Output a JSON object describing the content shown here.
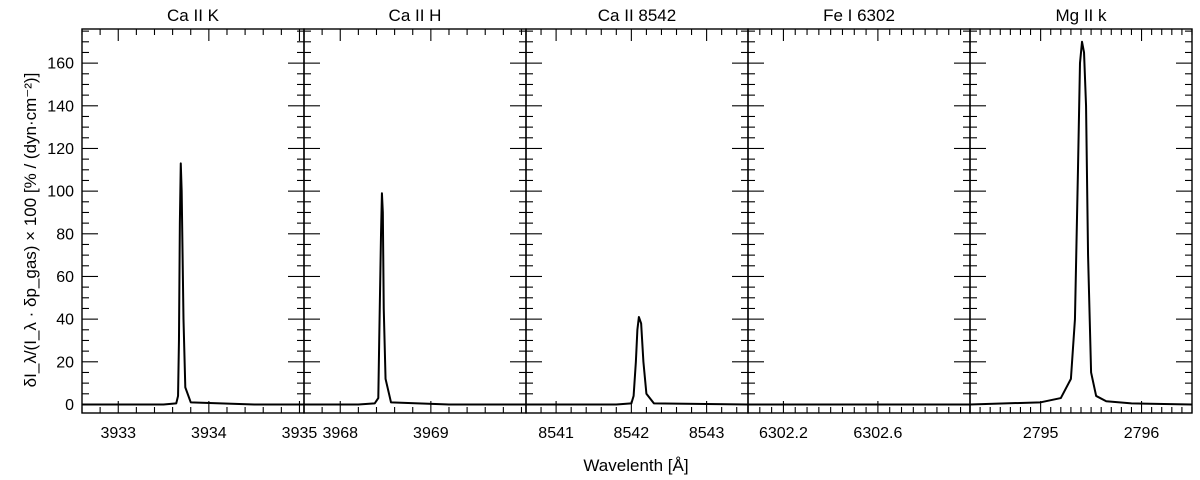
{
  "chart_data": {
    "type": "line",
    "ylabel": "δI_λ/(I_λ · δp_gas) × 100 [% / (dyn·cm⁻²)]",
    "xlabel": "Wavelenth [Å]",
    "ylim": [
      -4,
      176
    ],
    "yticks": [
      0,
      20,
      40,
      60,
      80,
      100,
      120,
      140,
      160
    ],
    "y_minor_step": 5,
    "panels": [
      {
        "title": "Ca II K",
        "xlim": [
          3932.6,
          3935.05
        ],
        "xticks": [
          3933,
          3934,
          3935
        ],
        "x_minor_step": 0.2,
        "series": [
          {
            "x": [
              3932.6,
              3933.5,
              3933.64,
              3933.66,
              3933.67,
              3933.68,
              3933.69,
              3933.7,
              3933.72,
              3933.74,
              3933.8,
              3934.5,
              3935.05
            ],
            "y": [
              0,
              0,
              0.5,
              4,
              30,
              85,
              113,
              100,
              40,
              8,
              1,
              0,
              0
            ]
          }
        ]
      },
      {
        "title": "Ca II H",
        "xlim": [
          3967.6,
          3970.05
        ],
        "xticks": [
          3968,
          3969
        ],
        "x_minor_step": 0.2,
        "series": [
          {
            "x": [
              3967.6,
              3968.2,
              3968.38,
              3968.42,
              3968.43,
              3968.45,
              3968.46,
              3968.47,
              3968.48,
              3968.5,
              3968.56,
              3969.2,
              3970.05
            ],
            "y": [
              0,
              0,
              0.5,
              3,
              30,
              80,
              99,
              90,
              45,
              12,
              1,
              0,
              0
            ]
          }
        ]
      },
      {
        "title": "Ca II 8542",
        "xlim": [
          8540.6,
          8543.55
        ],
        "xticks": [
          8541,
          8542,
          8543
        ],
        "x_minor_step": 0.2,
        "series": [
          {
            "x": [
              8540.6,
              8541.8,
              8542.0,
              8542.03,
              8542.06,
              8542.08,
              8542.1,
              8542.13,
              8542.16,
              8542.2,
              8542.3,
              8543.55
            ],
            "y": [
              0,
              0,
              0.5,
              4,
              20,
              35,
              41,
              38,
              20,
              5,
              0.5,
              0
            ]
          }
        ]
      },
      {
        "title": "Fe I 6302",
        "xlim": [
          6302.05,
          6302.99
        ],
        "xticks": [
          6302.2,
          6302.6
        ],
        "x_minor_step": 0.05,
        "series": [
          {
            "x": [
              6302.05,
              6302.5,
              6302.99
            ],
            "y": [
              0,
              0,
              0
            ]
          }
        ]
      },
      {
        "title": "Mg II k",
        "xlim": [
          2794.3,
          2796.5
        ],
        "xticks": [
          2795,
          2796
        ],
        "x_minor_step": 0.1,
        "series": [
          {
            "x": [
              2794.3,
              2795.0,
              2795.2,
              2795.3,
              2795.34,
              2795.37,
              2795.39,
              2795.41,
              2795.43,
              2795.45,
              2795.47,
              2795.5,
              2795.55,
              2795.65,
              2795.9,
              2796.5
            ],
            "y": [
              0,
              1,
              3,
              12,
              40,
              110,
              160,
              170,
              165,
              140,
              70,
              15,
              4,
              1.5,
              0.5,
              0
            ]
          }
        ]
      }
    ]
  }
}
